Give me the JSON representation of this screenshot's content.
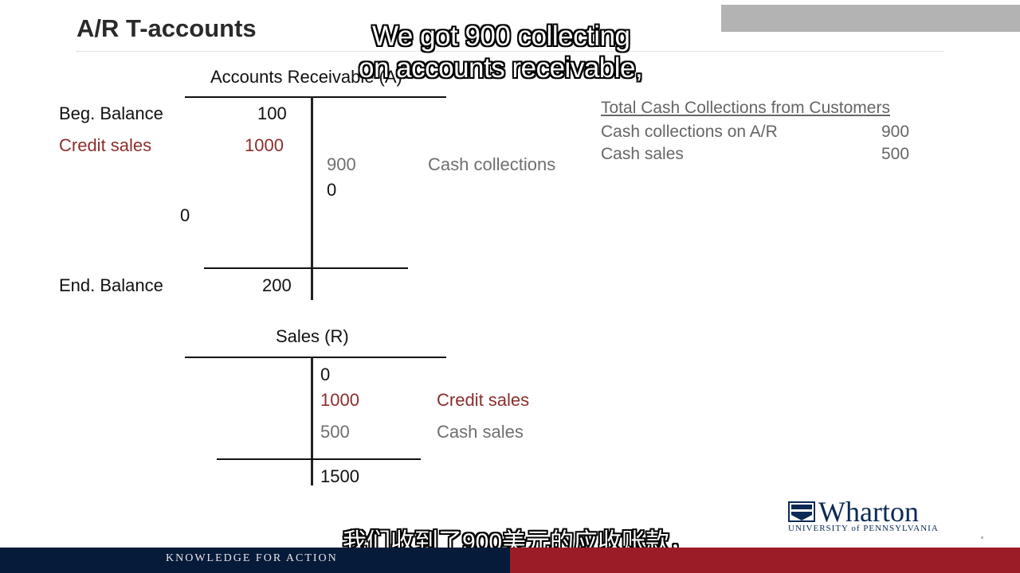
{
  "slide": {
    "title": "A/R T-accounts"
  },
  "ar_account": {
    "heading": "Accounts Receivable (A)",
    "beg_label": "Beg. Balance",
    "beg_value": "100",
    "credit_sales_label": "Credit sales",
    "credit_sales_value": "1000",
    "cash_collections_value": "900",
    "cash_collections_label": "Cash collections",
    "right_zero": "0",
    "left_zero": "0",
    "end_label": "End. Balance",
    "end_value": "200"
  },
  "sales_account": {
    "heading": "Sales (R)",
    "zero": "0",
    "credit_value": "1000",
    "credit_label": "Credit sales",
    "cash_value": "500",
    "cash_label": "Cash sales",
    "total": "1500"
  },
  "summary": {
    "title": "Total Cash Collections from Customers",
    "rows": [
      {
        "label": "Cash collections on A/R",
        "value": "900"
      },
      {
        "label": "Cash sales",
        "value": "500"
      }
    ]
  },
  "subtitles": {
    "english_line1": "We got 900 collecting",
    "english_line2": "on accounts receivable,",
    "chinese": "我们收到了900美元的应收账款，"
  },
  "footer": {
    "tagline": "KNOWLEDGE FOR ACTION"
  },
  "logo": {
    "name": "Wharton",
    "sub": "UNIVERSITY of PENNSYLVANIA"
  },
  "colors": {
    "red_text": "#8c2d2d",
    "gray_text": "#6f6f6f",
    "footer_navy": "#061a3a",
    "footer_red": "#9b1b27",
    "logo_navy": "#0b2a55"
  }
}
